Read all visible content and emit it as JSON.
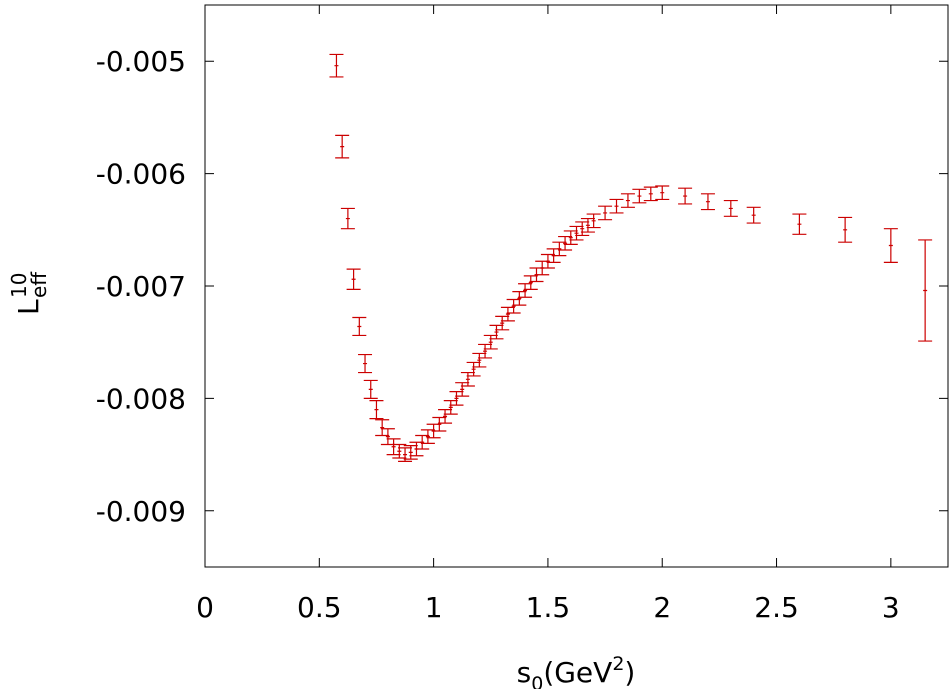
{
  "chart_data": {
    "type": "scatter",
    "x_label": [
      "s",
      "0",
      "(GeV",
      "2",
      ")"
    ],
    "y_label": {
      "base": "L",
      "sub": "eff",
      "sup": "10"
    },
    "color": "#cc0000",
    "x": [
      0.575,
      0.6,
      0.625,
      0.65,
      0.675,
      0.7,
      0.725,
      0.75,
      0.775,
      0.8,
      0.825,
      0.85,
      0.875,
      0.9,
      0.925,
      0.95,
      0.975,
      1.0,
      1.025,
      1.05,
      1.075,
      1.1,
      1.125,
      1.15,
      1.175,
      1.2,
      1.225,
      1.25,
      1.275,
      1.3,
      1.325,
      1.35,
      1.375,
      1.4,
      1.425,
      1.45,
      1.475,
      1.5,
      1.525,
      1.55,
      1.575,
      1.6,
      1.625,
      1.65,
      1.675,
      1.7,
      1.75,
      1.8,
      1.85,
      1.9,
      1.95,
      2.0,
      2.1,
      2.2,
      2.3,
      2.4,
      2.6,
      2.8,
      3.0,
      3.15
    ],
    "values": [
      -0.00504,
      -0.00576,
      -0.0064,
      -0.00694,
      -0.00736,
      -0.00769,
      -0.00792,
      -0.0081,
      -0.00826,
      -0.00834,
      -0.00843,
      -0.00847,
      -0.0085,
      -0.00848,
      -0.00845,
      -0.00839,
      -0.00834,
      -0.00829,
      -0.00823,
      -0.00816,
      -0.00808,
      -0.008,
      -0.00792,
      -0.00783,
      -0.00774,
      -0.00766,
      -0.00758,
      -0.0075,
      -0.00741,
      -0.00733,
      -0.00725,
      -0.00718,
      -0.00711,
      -0.00704,
      -0.00697,
      -0.0069,
      -0.00684,
      -0.00678,
      -0.00673,
      -0.00667,
      -0.00662,
      -0.00657,
      -0.00653,
      -0.00649,
      -0.00646,
      -0.00642,
      -0.00635,
      -0.00629,
      -0.00624,
      -0.0062,
      -0.00618,
      -0.00617,
      -0.0062,
      -0.00625,
      -0.00631,
      -0.00637,
      -0.00645,
      -0.0065,
      -0.00664,
      -0.00704
    ],
    "errors": [
      0.0001,
      0.0001,
      9e-05,
      9e-05,
      8e-05,
      8e-05,
      8e-05,
      8e-05,
      7e-05,
      7e-05,
      7e-05,
      6e-05,
      6e-05,
      6e-05,
      6e-05,
      6e-05,
      6e-05,
      6e-05,
      6e-05,
      6e-05,
      6e-05,
      6e-05,
      6e-05,
      6e-05,
      6e-05,
      6e-05,
      6e-05,
      6e-05,
      6e-05,
      6e-05,
      6e-05,
      6e-05,
      6e-05,
      6e-05,
      6e-05,
      6e-05,
      6e-05,
      6e-05,
      6e-05,
      6e-05,
      6e-05,
      6e-05,
      6e-05,
      6e-05,
      6e-05,
      6e-05,
      6e-05,
      6e-05,
      6e-05,
      6e-05,
      6e-05,
      6e-05,
      7e-05,
      7e-05,
      7e-05,
      7e-05,
      9e-05,
      0.00011,
      0.00015,
      0.00045
    ],
    "xlim": [
      0,
      3.25
    ],
    "xticks": [
      0,
      0.5,
      1,
      1.5,
      2,
      2.5,
      3
    ],
    "ylim": [
      -0.0095,
      -0.0045
    ],
    "yticks": [
      -0.009,
      -0.008,
      -0.007,
      -0.006,
      -0.005
    ]
  }
}
